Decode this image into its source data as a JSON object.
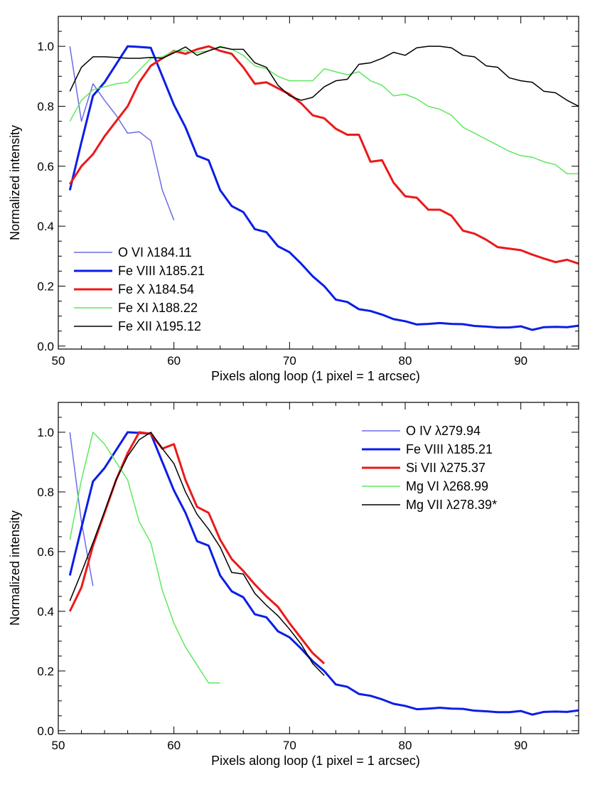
{
  "chart_data": [
    {
      "type": "line",
      "xlabel": "Pixels along loop (1 pixel = 1 arcsec)",
      "ylabel": "Normalized intensity",
      "xlim": [
        50,
        95
      ],
      "ylim": [
        -0.01,
        1.1
      ],
      "xticks": [
        {
          "value": 50,
          "label": "50"
        },
        {
          "value": 60,
          "label": "60"
        },
        {
          "value": 70,
          "label": "70"
        },
        {
          "value": 80,
          "label": "80"
        },
        {
          "value": 90,
          "label": "90"
        }
      ],
      "yticks": [
        {
          "value": 0.0,
          "label": "0.0"
        },
        {
          "value": 0.2,
          "label": "0.2"
        },
        {
          "value": 0.4,
          "label": "0.4"
        },
        {
          "value": 0.6,
          "label": "0.6"
        },
        {
          "value": 0.8,
          "label": "0.8"
        },
        {
          "value": 1.0,
          "label": "1.0"
        }
      ],
      "grid": false,
      "legend": "bottom-left",
      "series": [
        {
          "name": "O VI λ184.11",
          "color": "#6b6be8",
          "width": "thin",
          "x": [
            51,
            52,
            53,
            54,
            55,
            56,
            57,
            58,
            59,
            60
          ],
          "y": [
            1.0,
            0.75,
            0.875,
            0.82,
            0.77,
            0.71,
            0.715,
            0.685,
            0.52,
            0.42
          ]
        },
        {
          "name": "Fe VIII λ185.21",
          "color": "#0a1ee6",
          "width": "thick",
          "x": [
            51,
            52,
            53,
            54,
            55,
            56,
            57,
            58,
            59,
            60,
            61,
            62,
            63,
            64,
            65,
            66,
            67,
            68,
            69,
            70,
            71,
            72,
            73,
            74,
            75,
            76,
            77,
            78,
            79,
            80,
            81,
            82,
            83,
            84,
            85,
            86,
            87,
            88,
            89,
            90,
            91,
            92,
            93,
            94,
            95
          ],
          "y": [
            0.52,
            0.68,
            0.835,
            0.88,
            0.94,
            1.0,
            0.998,
            0.995,
            0.9,
            0.805,
            0.73,
            0.635,
            0.62,
            0.52,
            0.467,
            0.447,
            0.39,
            0.38,
            0.333,
            0.313,
            0.275,
            0.233,
            0.2,
            0.155,
            0.147,
            0.123,
            0.117,
            0.105,
            0.09,
            0.083,
            0.072,
            0.074,
            0.077,
            0.074,
            0.073,
            0.067,
            0.065,
            0.062,
            0.062,
            0.066,
            0.054,
            0.063,
            0.064,
            0.063,
            0.068
          ]
        },
        {
          "name": "Fe X λ184.54",
          "color": "#ea1a1a",
          "width": "thick",
          "x": [
            51,
            52,
            53,
            54,
            55,
            56,
            57,
            58,
            59,
            60,
            61,
            62,
            63,
            64,
            65,
            66,
            67,
            68,
            69,
            70,
            71,
            72,
            73,
            74,
            75,
            76,
            77,
            78,
            79,
            80,
            81,
            82,
            83,
            84,
            85,
            86,
            87,
            88,
            89,
            90,
            91,
            92,
            93,
            94,
            95
          ],
          "y": [
            0.54,
            0.6,
            0.64,
            0.7,
            0.75,
            0.8,
            0.88,
            0.935,
            0.96,
            0.985,
            0.975,
            0.99,
            1.0,
            0.985,
            0.975,
            0.93,
            0.875,
            0.88,
            0.86,
            0.84,
            0.81,
            0.77,
            0.76,
            0.725,
            0.705,
            0.705,
            0.615,
            0.62,
            0.545,
            0.5,
            0.495,
            0.455,
            0.455,
            0.435,
            0.385,
            0.375,
            0.355,
            0.33,
            0.325,
            0.32,
            0.305,
            0.292,
            0.28,
            0.288,
            0.275
          ]
        },
        {
          "name": "Fe XI λ188.22",
          "color": "#5ee85e",
          "width": "thin",
          "x": [
            51,
            52,
            53,
            54,
            55,
            56,
            57,
            58,
            59,
            60,
            61,
            62,
            63,
            64,
            65,
            66,
            67,
            68,
            69,
            70,
            71,
            72,
            73,
            74,
            75,
            76,
            77,
            78,
            79,
            80,
            81,
            82,
            83,
            84,
            85,
            86,
            87,
            88,
            89,
            90,
            91,
            92,
            93,
            94,
            95
          ],
          "y": [
            0.75,
            0.82,
            0.855,
            0.865,
            0.875,
            0.88,
            0.92,
            0.96,
            0.965,
            0.985,
            0.985,
            0.98,
            0.985,
            1.0,
            0.99,
            0.97,
            0.935,
            0.925,
            0.9,
            0.885,
            0.885,
            0.885,
            0.925,
            0.915,
            0.905,
            0.915,
            0.885,
            0.87,
            0.835,
            0.84,
            0.825,
            0.8,
            0.79,
            0.77,
            0.73,
            0.71,
            0.69,
            0.67,
            0.65,
            0.635,
            0.63,
            0.615,
            0.605,
            0.575,
            0.575
          ]
        },
        {
          "name": "Fe XII λ195.12",
          "color": "#000000",
          "width": "thin",
          "x": [
            51,
            52,
            53,
            54,
            55,
            56,
            57,
            58,
            59,
            60,
            61,
            62,
            63,
            64,
            65,
            66,
            67,
            68,
            69,
            70,
            71,
            72,
            73,
            74,
            75,
            76,
            77,
            78,
            79,
            80,
            81,
            82,
            83,
            84,
            85,
            86,
            87,
            88,
            89,
            90,
            91,
            92,
            93,
            94,
            95
          ],
          "y": [
            0.85,
            0.93,
            0.965,
            0.965,
            0.963,
            0.96,
            0.96,
            0.963,
            0.96,
            0.978,
            0.998,
            0.97,
            0.985,
            0.998,
            0.99,
            0.99,
            0.945,
            0.93,
            0.87,
            0.835,
            0.82,
            0.83,
            0.865,
            0.885,
            0.89,
            0.94,
            0.945,
            0.96,
            0.98,
            0.97,
            0.995,
            1.0,
            1.0,
            0.995,
            0.97,
            0.965,
            0.935,
            0.93,
            0.895,
            0.885,
            0.88,
            0.85,
            0.845,
            0.82,
            0.8
          ]
        }
      ]
    },
    {
      "type": "line",
      "xlabel": "Pixels along loop (1 pixel = 1 arcsec)",
      "ylabel": "Normalized intensity",
      "xlim": [
        50,
        95
      ],
      "ylim": [
        -0.01,
        1.1
      ],
      "xticks": [
        {
          "value": 50,
          "label": "50"
        },
        {
          "value": 60,
          "label": "60"
        },
        {
          "value": 70,
          "label": "70"
        },
        {
          "value": 80,
          "label": "80"
        },
        {
          "value": 90,
          "label": "90"
        }
      ],
      "yticks": [
        {
          "value": 0.0,
          "label": "0.0"
        },
        {
          "value": 0.2,
          "label": "0.2"
        },
        {
          "value": 0.4,
          "label": "0.4"
        },
        {
          "value": 0.6,
          "label": "0.6"
        },
        {
          "value": 0.8,
          "label": "0.8"
        },
        {
          "value": 1.0,
          "label": "1.0"
        }
      ],
      "grid": false,
      "legend": "top-right",
      "series": [
        {
          "name": "O IV λ279.94",
          "color": "#6b6be8",
          "width": "thin",
          "x": [
            51,
            52,
            53
          ],
          "y": [
            1.0,
            0.7,
            0.485
          ]
        },
        {
          "name": "Fe VIII λ185.21",
          "color": "#0a1ee6",
          "width": "thick",
          "x": [
            51,
            52,
            53,
            54,
            55,
            56,
            57,
            58,
            59,
            60,
            61,
            62,
            63,
            64,
            65,
            66,
            67,
            68,
            69,
            70,
            71,
            72,
            73,
            74,
            75,
            76,
            77,
            78,
            79,
            80,
            81,
            82,
            83,
            84,
            85,
            86,
            87,
            88,
            89,
            90,
            91,
            92,
            93,
            94,
            95
          ],
          "y": [
            0.52,
            0.68,
            0.835,
            0.88,
            0.94,
            1.0,
            0.998,
            0.995,
            0.9,
            0.805,
            0.73,
            0.635,
            0.62,
            0.52,
            0.467,
            0.447,
            0.39,
            0.38,
            0.333,
            0.313,
            0.275,
            0.233,
            0.2,
            0.155,
            0.147,
            0.123,
            0.117,
            0.105,
            0.09,
            0.083,
            0.072,
            0.074,
            0.077,
            0.074,
            0.073,
            0.067,
            0.065,
            0.062,
            0.062,
            0.066,
            0.054,
            0.063,
            0.064,
            0.063,
            0.068
          ]
        },
        {
          "name": "Si VII λ275.37",
          "color": "#ea1a1a",
          "width": "thick",
          "x": [
            51,
            52,
            53,
            54,
            55,
            56,
            57,
            58,
            59,
            60,
            61,
            62,
            63,
            64,
            65,
            66,
            67,
            68,
            69,
            70,
            71,
            72,
            73
          ],
          "y": [
            0.4,
            0.48,
            0.62,
            0.73,
            0.84,
            0.93,
            1.0,
            0.995,
            0.945,
            0.96,
            0.84,
            0.75,
            0.73,
            0.64,
            0.575,
            0.535,
            0.49,
            0.45,
            0.415,
            0.36,
            0.31,
            0.26,
            0.225
          ]
        },
        {
          "name": "Mg VI λ268.99",
          "color": "#5ee85e",
          "width": "thin",
          "x": [
            51,
            52,
            53,
            54,
            55,
            56,
            57,
            58,
            59,
            60,
            61,
            62,
            63,
            64
          ],
          "y": [
            0.64,
            0.84,
            1.0,
            0.96,
            0.9,
            0.84,
            0.7,
            0.63,
            0.47,
            0.36,
            0.28,
            0.22,
            0.16,
            0.16
          ]
        },
        {
          "name": "Mg VII λ278.39*",
          "color": "#000000",
          "width": "thin",
          "x": [
            51,
            52,
            53,
            54,
            55,
            56,
            57,
            58,
            59,
            60,
            61,
            62,
            63,
            64,
            65,
            66,
            67,
            68,
            69,
            70,
            71,
            72,
            73
          ],
          "y": [
            0.435,
            0.53,
            0.63,
            0.735,
            0.84,
            0.92,
            0.975,
            1.0,
            0.945,
            0.895,
            0.8,
            0.725,
            0.675,
            0.615,
            0.53,
            0.525,
            0.46,
            0.42,
            0.385,
            0.34,
            0.29,
            0.225,
            0.185
          ]
        }
      ]
    }
  ]
}
